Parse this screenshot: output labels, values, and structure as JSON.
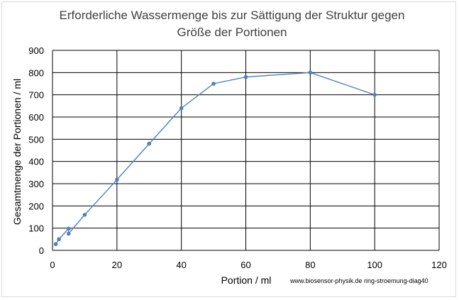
{
  "chart_data": {
    "type": "scatter",
    "title_lines": [
      "Erforderliche Wassermenge bis zur Sättigung der Struktur gegen",
      "Größe der Portionen"
    ],
    "xlabel": "Portion / ml",
    "ylabel": "Gesamtmenge der Portionen / ml",
    "xlim": [
      0,
      120
    ],
    "ylim": [
      0,
      900
    ],
    "x_ticks": [
      0,
      20,
      40,
      60,
      80,
      100,
      120
    ],
    "y_ticks": [
      0,
      100,
      200,
      300,
      400,
      500,
      600,
      700,
      800,
      900
    ],
    "grid": "vertical and horizontal",
    "mode": "lines+markers",
    "series": [
      {
        "color": "#4f81bd",
        "points": [
          {
            "x": 1,
            "y": 28
          },
          {
            "x": 2,
            "y": 50
          },
          {
            "x": 5,
            "y": 98
          },
          {
            "x": 5,
            "y": 75
          },
          {
            "x": 10,
            "y": 160
          },
          {
            "x": 20,
            "y": 318
          },
          {
            "x": 30,
            "y": 480
          },
          {
            "x": 40,
            "y": 640
          },
          {
            "x": 50,
            "y": 750
          },
          {
            "x": 60,
            "y": 780
          },
          {
            "x": 80,
            "y": 800
          },
          {
            "x": 100,
            "y": 700
          }
        ]
      }
    ],
    "source_note": "www.biosensor-physik.de ring-stroemung-diag40"
  }
}
